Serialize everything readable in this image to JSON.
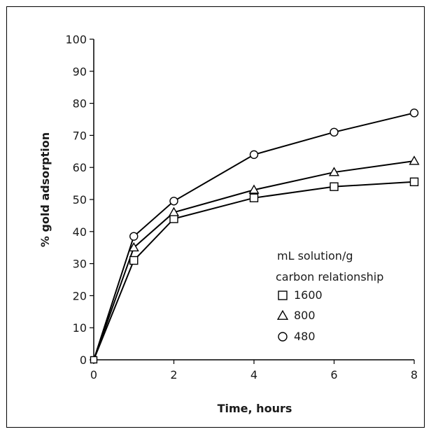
{
  "chart_data": {
    "type": "line",
    "xlabel": "Time, hours",
    "ylabel": "% gold adsorption",
    "xlim": [
      0,
      8
    ],
    "ylim": [
      0,
      100
    ],
    "x_ticks": [
      0,
      2,
      4,
      6,
      8
    ],
    "y_ticks": [
      0,
      10,
      20,
      30,
      40,
      50,
      60,
      70,
      80,
      90,
      100
    ],
    "grid": false,
    "legend": {
      "title_lines": [
        "mL solution/g",
        "carbon relationship"
      ],
      "placement": "lower-right"
    },
    "series": [
      {
        "name": "1600",
        "marker": "square",
        "x": [
          0,
          1,
          2,
          4,
          6,
          8
        ],
        "y": [
          0,
          31,
          44,
          50.5,
          54,
          55.5
        ]
      },
      {
        "name": "800",
        "marker": "triangle",
        "x": [
          0,
          1,
          2,
          4,
          6,
          8
        ],
        "y": [
          0,
          35,
          46,
          53,
          58.5,
          62
        ]
      },
      {
        "name": "480",
        "marker": "circle",
        "x": [
          0,
          1,
          2,
          4,
          6,
          8
        ],
        "y": [
          0,
          38.5,
          49.5,
          64,
          71,
          77
        ]
      }
    ],
    "colors": {
      "line": "#000000",
      "marker_fill": "#ffffff"
    }
  }
}
